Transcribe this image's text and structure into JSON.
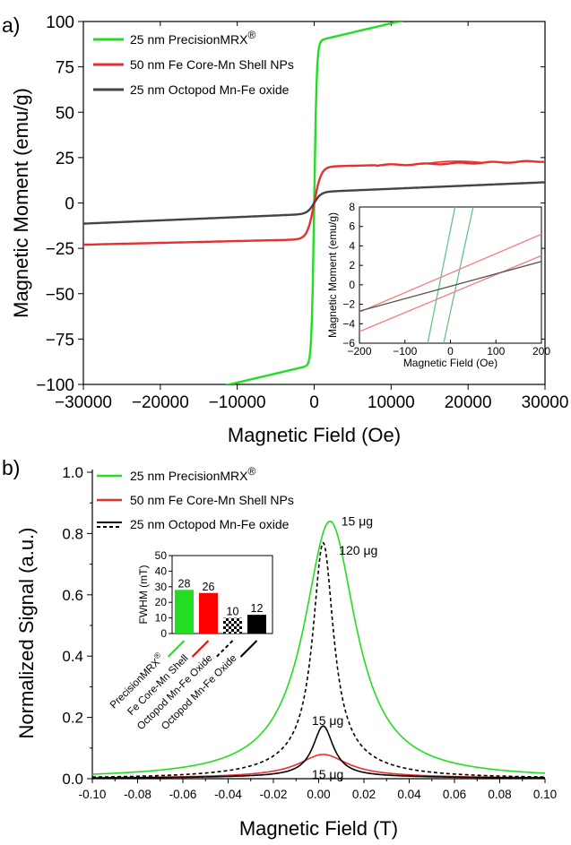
{
  "panels": {
    "a": {
      "letter": "a)"
    },
    "b": {
      "letter": "b)"
    }
  },
  "chart_data": [
    {
      "id": "a",
      "type": "line",
      "xlabel": "Magnetic Field (Oe)",
      "ylabel": "Magnetic Moment (emu/g)",
      "xlim": [
        -30000,
        30000
      ],
      "ylim": [
        -100,
        100
      ],
      "xticks": [
        -30000,
        -20000,
        -10000,
        0,
        10000,
        20000,
        30000
      ],
      "yticks": [
        -100,
        -75,
        -50,
        -25,
        0,
        25,
        50,
        75,
        100
      ],
      "legend_position": "top-left",
      "series": [
        {
          "name": "25 nm PrecisionMRX",
          "name_sup": "®",
          "color": "#22dd22",
          "model": {
            "kind": "tanh",
            "ms": 89,
            "h0": 330,
            "s": 0.001
          }
        },
        {
          "name": "50 nm Fe Core-Mn Shell NPs",
          "name_sup": "",
          "color": "#e53030",
          "model": {
            "kind": "tanh",
            "ms": 20,
            "h0": 900,
            "s": 0.0001
          },
          "hysteresis_loop": {
            "x": [
              14000,
              22000
            ],
            "y_offset": 1.2
          }
        },
        {
          "name": "25 nm Octopod Mn-Fe oxide",
          "name_sup": "",
          "color": "#444444",
          "model": {
            "kind": "tanh",
            "ms": 6,
            "h0": 900,
            "s": 0.00018
          }
        }
      ],
      "inset": {
        "type": "line",
        "xlabel": "Magnetic Field (Oe)",
        "ylabel": "Magnetic Moment (emu/g)",
        "xlim": [
          -200,
          200
        ],
        "ylim": [
          -6,
          8
        ],
        "xticks": [
          -200,
          -100,
          0,
          100,
          200
        ],
        "yticks": [
          -6,
          -4,
          -2,
          0,
          2,
          4,
          6,
          8
        ],
        "series": [
          {
            "name": "25 nm PrecisionMRX",
            "color": "#66c487",
            "lines": [
              [
                [
                  -50,
                  -6
                ],
                [
                  10,
                  8
                ]
              ],
              [
                [
                  -15,
                  -6
                ],
                [
                  50,
                  8
                ]
              ]
            ]
          },
          {
            "name": "50 nm Fe Core-Mn Shell NPs",
            "color": "#ef7f7f",
            "lines": [
              [
                [
                  -200,
                  -4.8
                ],
                [
                  200,
                  3.0
                ]
              ],
              [
                [
                  -200,
                  -2.8
                ],
                [
                  200,
                  5.2
                ]
              ]
            ]
          },
          {
            "name": "25 nm Octopod Mn-Fe oxide",
            "color": "#555555",
            "lines": [
              [
                [
                  -200,
                  -2.7
                ],
                [
                  200,
                  2.4
                ]
              ]
            ]
          }
        ]
      }
    },
    {
      "id": "b",
      "type": "line",
      "xlabel": "Magnetic Field (T)",
      "ylabel": "Normalized Signal (a.u.)",
      "xlim": [
        -0.1,
        0.1
      ],
      "ylim": [
        0,
        1.0
      ],
      "xticks": [
        -0.1,
        -0.08,
        -0.06,
        -0.04,
        -0.02,
        0.0,
        0.02,
        0.04,
        0.06,
        0.08,
        0.1
      ],
      "xtick_labels": [
        "-0.10",
        "-0.08",
        "-0.06",
        "-0.04",
        "-0.02",
        "0.00",
        "0.02",
        "0.04",
        "0.06",
        "0.08",
        "0.10"
      ],
      "yticks": [
        0.0,
        0.2,
        0.4,
        0.6,
        0.8,
        1.0
      ],
      "ytick_labels": [
        "0.0",
        "0.2",
        "0.4",
        "0.6",
        "0.8",
        "1.0"
      ],
      "legend_position": "top-left",
      "series": [
        {
          "name": "25 nm PrecisionMRX",
          "name_sup": "®",
          "color": "#22dd22",
          "dash": "",
          "model": {
            "kind": "lorentz",
            "amp": 0.84,
            "x0": 0.005,
            "w": 0.014,
            "wide_amp": 0.0,
            "wide_w": 0.05
          }
        },
        {
          "name": "50 nm Fe Core-Mn Shell NPs",
          "name_sup": "",
          "color": "#e53030",
          "dash": "",
          "model": {
            "kind": "lorentz",
            "amp": 0.072,
            "x0": 0.002,
            "w": 0.013,
            "wide_amp": 0.007,
            "wide_w": 0.06
          }
        },
        {
          "name": "25 nm Octopod Mn-Fe oxide",
          "name_sup": "",
          "color": "#000000",
          "dash": "",
          "model": {
            "kind": "lorentz",
            "amp": 0.165,
            "x0": 0.002,
            "w": 0.0055,
            "wide_amp": 0.007,
            "wide_w": 0.06
          }
        },
        {
          "name": "25 nm Octopod Mn-Fe oxide",
          "name_sup": "",
          "color": "#000000",
          "dash": "4,3",
          "model": {
            "kind": "lorentz",
            "amp": 0.71,
            "x0": 0.002,
            "w": 0.0055,
            "wide_amp": 0.06,
            "wide_w": 0.024
          }
        }
      ],
      "annotations": [
        {
          "text": "15 μg",
          "x": 0.01,
          "y": 0.84
        },
        {
          "text": "120 μg",
          "x": 0.009,
          "y": 0.745
        },
        {
          "text": "15 μg",
          "x": -0.003,
          "y": 0.19
        },
        {
          "text": "15 μg",
          "x": -0.003,
          "y": 0.015
        }
      ],
      "inset": {
        "type": "bar",
        "ylabel": "FWHM (mT)",
        "ylim": [
          0,
          50
        ],
        "yticks": [
          0,
          10,
          20,
          30,
          40,
          50
        ],
        "categories": [
          "PrecisionMRX",
          "Fe Core-Mn Shell",
          "Octopod Mn-Fe Oxide",
          "Octopod Mn-Fe Oxide"
        ],
        "category_sup": [
          "®",
          "",
          "",
          ""
        ],
        "values": [
          28,
          26,
          10,
          12
        ],
        "value_labels": [
          "28",
          "26",
          "10",
          "12"
        ],
        "colors": [
          "#22dd22",
          "#ff0000",
          "checker",
          "#000000"
        ],
        "line_styles": [
          "solid",
          "solid",
          "dashed",
          "solid"
        ]
      }
    }
  ]
}
